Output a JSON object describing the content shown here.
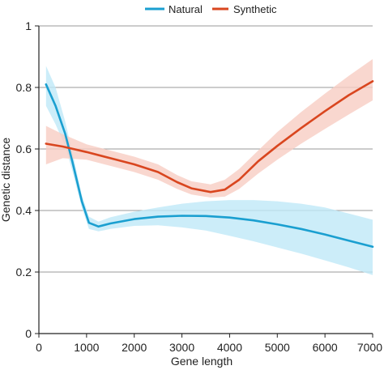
{
  "chart_data": {
    "type": "line",
    "title": "",
    "xlabel": "Gene length",
    "ylabel": "Genetic distance",
    "xlim": [
      0,
      7000
    ],
    "ylim": [
      0,
      1
    ],
    "x_ticks": [
      0,
      1000,
      2000,
      3000,
      4000,
      5000,
      6000,
      7000
    ],
    "x_tick_labels": [
      "0",
      "1000",
      "2000",
      "3000",
      "4000",
      "5000",
      "6000",
      "7000"
    ],
    "y_ticks": [
      0,
      0.2,
      0.4,
      0.6,
      0.8,
      1
    ],
    "y_tick_labels": [
      "0",
      "0.2",
      "0.4",
      "0.6",
      "0.8",
      "1"
    ],
    "grid": "horizontal",
    "legend": "top-center",
    "series": [
      {
        "name": "Natural",
        "color": "#1a9fd0",
        "band_color": "#bfe9f7",
        "x": [
          150,
          350,
          550,
          700,
          900,
          1050,
          1250,
          1500,
          2000,
          2500,
          3000,
          3500,
          4000,
          4500,
          5000,
          5500,
          6000,
          6500,
          7000
        ],
        "y": [
          0.81,
          0.74,
          0.65,
          0.56,
          0.43,
          0.36,
          0.348,
          0.358,
          0.372,
          0.38,
          0.383,
          0.382,
          0.377,
          0.368,
          0.355,
          0.34,
          0.322,
          0.302,
          0.282
        ],
        "lower": [
          0.74,
          0.68,
          0.61,
          0.53,
          0.41,
          0.34,
          0.332,
          0.34,
          0.35,
          0.352,
          0.345,
          0.335,
          0.318,
          0.3,
          0.28,
          0.26,
          0.238,
          0.215,
          0.19
        ],
        "upper": [
          0.87,
          0.8,
          0.69,
          0.59,
          0.45,
          0.38,
          0.364,
          0.378,
          0.396,
          0.41,
          0.422,
          0.43,
          0.434,
          0.434,
          0.43,
          0.422,
          0.41,
          0.39,
          0.37
        ]
      },
      {
        "name": "Synthetic",
        "color": "#d9461f",
        "band_color": "#f8cdc3",
        "x": [
          150,
          500,
          1000,
          1500,
          2000,
          2500,
          2900,
          3200,
          3600,
          3900,
          4200,
          4600,
          5000,
          5500,
          6000,
          6500,
          7000
        ],
        "y": [
          0.617,
          0.608,
          0.59,
          0.57,
          0.55,
          0.525,
          0.492,
          0.472,
          0.46,
          0.468,
          0.5,
          0.56,
          0.61,
          0.668,
          0.723,
          0.775,
          0.82
        ],
        "lower": [
          0.55,
          0.57,
          0.565,
          0.545,
          0.525,
          0.5,
          0.47,
          0.452,
          0.442,
          0.445,
          0.47,
          0.52,
          0.565,
          0.617,
          0.665,
          0.712,
          0.758
        ],
        "upper": [
          0.675,
          0.648,
          0.615,
          0.595,
          0.575,
          0.55,
          0.515,
          0.495,
          0.485,
          0.5,
          0.535,
          0.595,
          0.655,
          0.72,
          0.78,
          0.838,
          0.892
        ]
      }
    ]
  }
}
